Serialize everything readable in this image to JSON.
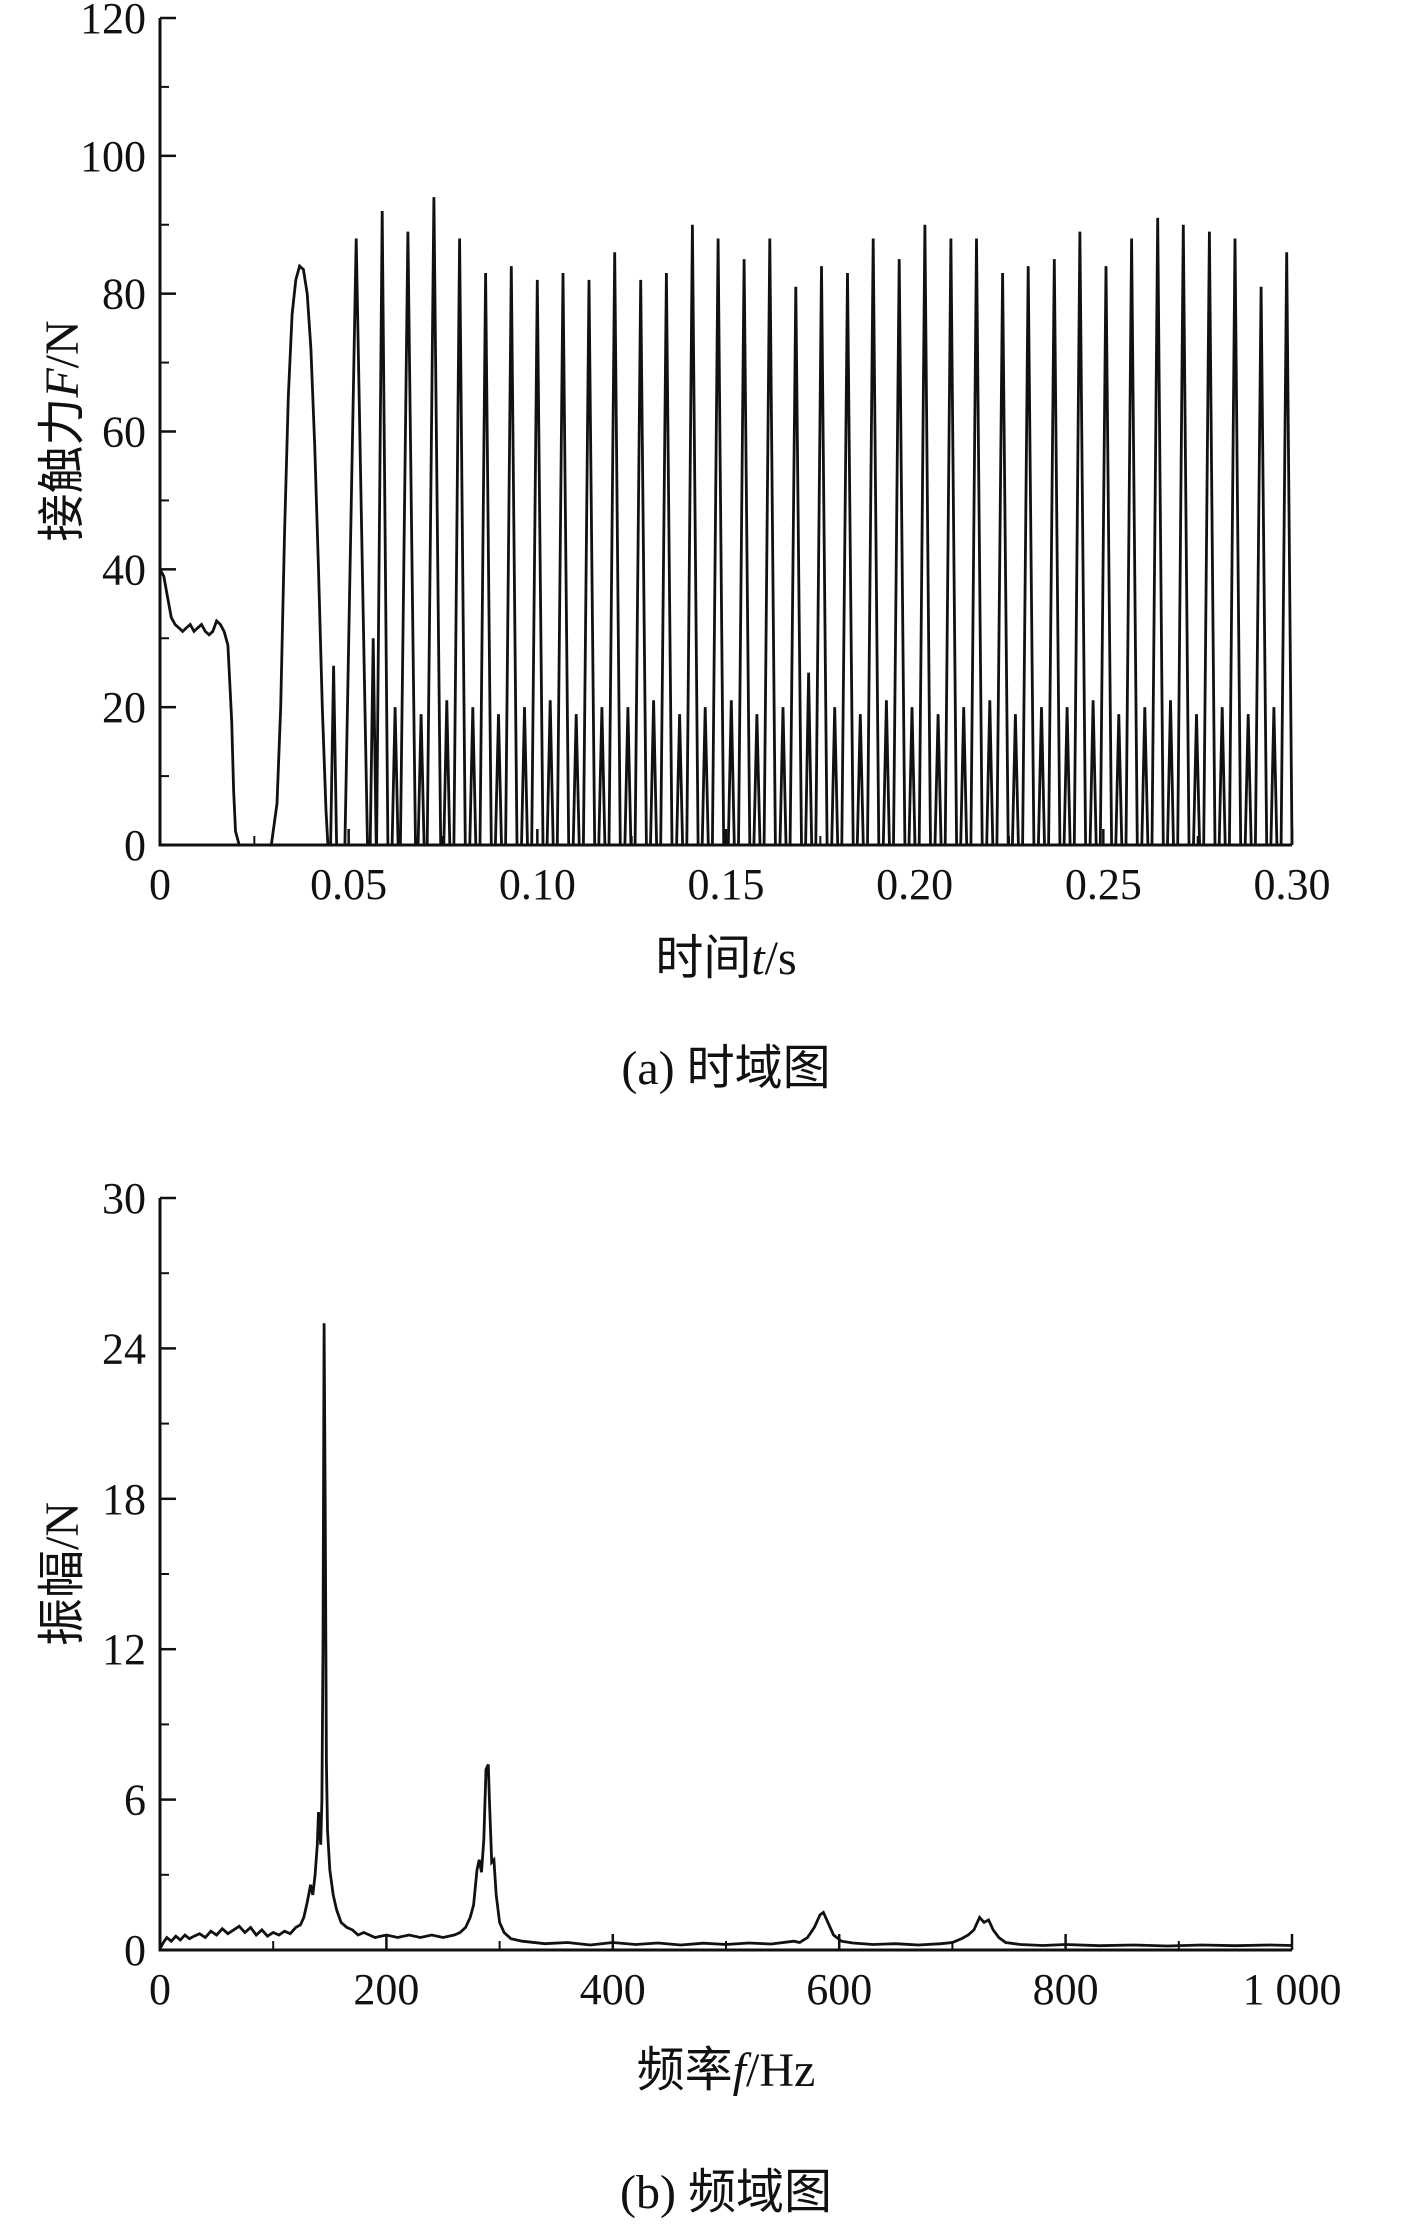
{
  "style": {
    "background": "#ffffff",
    "line_color": "#111111",
    "axis_color": "#111111",
    "tick_label_color": "#111111"
  },
  "chart_data": [
    {
      "type": "line",
      "id": "time-domain",
      "caption": "(a) 时域图",
      "xlabel": {
        "prefix": "时间",
        "var": "t",
        "suffix": "/s"
      },
      "ylabel": {
        "prefix": "接触力",
        "var": "F",
        "suffix": "/N"
      },
      "xlim": [
        0,
        0.3
      ],
      "ylim": [
        0,
        120
      ],
      "xticks": [
        0,
        0.05,
        0.1,
        0.15,
        0.2,
        0.25,
        0.3
      ],
      "xtick_labels": [
        "0",
        "0.05",
        "0.10",
        "0.15",
        "0.20",
        "0.25",
        "0.30"
      ],
      "yticks": [
        0,
        20,
        40,
        60,
        80,
        100,
        120
      ],
      "ytick_labels": [
        "0",
        "20",
        "40",
        "60",
        "80",
        "100",
        "120"
      ],
      "x_minor_step": 0.025,
      "y_minor_step": 10,
      "grid": false,
      "legend": "none",
      "tall_half_width": 0.0015,
      "small_half_width": 0.0008,
      "transient_points": [
        [
          0,
          40
        ],
        [
          0.001,
          39
        ],
        [
          0.002,
          36
        ],
        [
          0.003,
          33
        ],
        [
          0.004,
          32
        ],
        [
          0.005,
          31.5
        ],
        [
          0.006,
          31
        ],
        [
          0.007,
          31.5
        ],
        [
          0.008,
          32
        ],
        [
          0.009,
          31
        ],
        [
          0.01,
          31.5
        ],
        [
          0.011,
          32
        ],
        [
          0.012,
          31
        ],
        [
          0.013,
          30.5
        ],
        [
          0.014,
          31
        ],
        [
          0.015,
          32.5
        ],
        [
          0.016,
          32
        ],
        [
          0.017,
          31
        ],
        [
          0.018,
          29
        ],
        [
          0.019,
          18
        ],
        [
          0.0195,
          8
        ],
        [
          0.02,
          2
        ],
        [
          0.021,
          0
        ],
        [
          0.0295,
          0
        ],
        [
          0.031,
          6
        ],
        [
          0.032,
          20
        ],
        [
          0.033,
          45
        ],
        [
          0.034,
          65
        ],
        [
          0.035,
          77
        ],
        [
          0.036,
          82
        ],
        [
          0.037,
          84
        ],
        [
          0.038,
          83.5
        ],
        [
          0.039,
          80
        ],
        [
          0.04,
          72
        ],
        [
          0.041,
          58
        ],
        [
          0.042,
          40
        ],
        [
          0.043,
          20
        ],
        [
          0.044,
          5
        ],
        [
          0.0445,
          0
        ]
      ],
      "tall_peaks": [
        [
          0.052,
          88,
          0.003
        ],
        [
          0.0589,
          92
        ],
        [
          0.0657,
          89,
          0.002
        ],
        [
          0.0726,
          94,
          0.0018
        ],
        [
          0.0794,
          88
        ],
        [
          0.0863,
          83
        ],
        [
          0.0931,
          84
        ],
        [
          0.1,
          82
        ],
        [
          0.1068,
          83
        ],
        [
          0.1137,
          82
        ],
        [
          0.1205,
          86
        ],
        [
          0.1274,
          82
        ],
        [
          0.1342,
          83
        ],
        [
          0.1411,
          90
        ],
        [
          0.1479,
          88
        ],
        [
          0.1548,
          85
        ],
        [
          0.1616,
          88
        ],
        [
          0.1685,
          81
        ],
        [
          0.1753,
          84
        ],
        [
          0.1822,
          83
        ],
        [
          0.189,
          88
        ],
        [
          0.1959,
          85
        ],
        [
          0.2027,
          90
        ],
        [
          0.2096,
          88
        ],
        [
          0.2164,
          88
        ],
        [
          0.2233,
          83
        ],
        [
          0.2301,
          84
        ],
        [
          0.237,
          85
        ],
        [
          0.2438,
          89
        ],
        [
          0.2507,
          84
        ],
        [
          0.2575,
          88
        ],
        [
          0.2644,
          91
        ],
        [
          0.2712,
          90
        ],
        [
          0.2781,
          89
        ],
        [
          0.2849,
          88
        ],
        [
          0.2918,
          81
        ],
        [
          0.2986,
          86
        ]
      ],
      "small_peaks": [
        [
          0.046,
          26
        ],
        [
          0.0565,
          30
        ],
        [
          0.0623,
          20
        ],
        [
          0.0692,
          19
        ],
        [
          0.076,
          21
        ],
        [
          0.0829,
          20
        ],
        [
          0.0897,
          19
        ],
        [
          0.0966,
          20
        ],
        [
          0.1034,
          21
        ],
        [
          0.1103,
          19
        ],
        [
          0.1171,
          20
        ],
        [
          0.124,
          20
        ],
        [
          0.1308,
          21
        ],
        [
          0.1377,
          19
        ],
        [
          0.1445,
          20
        ],
        [
          0.1514,
          21
        ],
        [
          0.1582,
          19
        ],
        [
          0.1651,
          20
        ],
        [
          0.1719,
          25
        ],
        [
          0.1788,
          20
        ],
        [
          0.1856,
          19
        ],
        [
          0.1925,
          21
        ],
        [
          0.1993,
          20
        ],
        [
          0.2062,
          19
        ],
        [
          0.213,
          20
        ],
        [
          0.2199,
          21
        ],
        [
          0.2267,
          19
        ],
        [
          0.2336,
          20
        ],
        [
          0.2404,
          20
        ],
        [
          0.2473,
          21
        ],
        [
          0.2541,
          19
        ],
        [
          0.261,
          20
        ],
        [
          0.2678,
          21
        ],
        [
          0.2747,
          19
        ],
        [
          0.2815,
          20
        ],
        [
          0.2884,
          19
        ],
        [
          0.2952,
          20
        ]
      ]
    },
    {
      "type": "line",
      "id": "frequency-domain",
      "caption": "(b) 频域图",
      "xlabel": {
        "prefix": "频率",
        "var": "f",
        "suffix": "/Hz"
      },
      "ylabel": {
        "prefix": "振幅",
        "var": "",
        "suffix": "/N"
      },
      "xlim": [
        0,
        1000
      ],
      "ylim": [
        0,
        30
      ],
      "xticks": [
        0,
        200,
        400,
        600,
        800,
        1000
      ],
      "xtick_labels": [
        "0",
        "200",
        "400",
        "600",
        "800",
        "1 000"
      ],
      "yticks": [
        0,
        6,
        12,
        18,
        24,
        30
      ],
      "ytick_labels": [
        "0",
        "6",
        "12",
        "18",
        "24",
        "30"
      ],
      "x_minor_step": 100,
      "y_minor_step": 3,
      "grid": false,
      "legend": "none",
      "main_peaks": [
        {
          "freq_hz": 145,
          "amplitude": 25
        },
        {
          "freq_hz": 290,
          "amplitude": 7.4
        },
        {
          "freq_hz": 586,
          "amplitude": 1.5
        },
        {
          "freq_hz": 728,
          "amplitude": 1.3
        }
      ],
      "points": [
        [
          0,
          0.05
        ],
        [
          3,
          0.3
        ],
        [
          6,
          0.5
        ],
        [
          10,
          0.35
        ],
        [
          14,
          0.55
        ],
        [
          18,
          0.4
        ],
        [
          22,
          0.6
        ],
        [
          26,
          0.45
        ],
        [
          30,
          0.55
        ],
        [
          35,
          0.65
        ],
        [
          40,
          0.5
        ],
        [
          45,
          0.75
        ],
        [
          50,
          0.6
        ],
        [
          55,
          0.85
        ],
        [
          60,
          0.65
        ],
        [
          65,
          0.8
        ],
        [
          70,
          0.95
        ],
        [
          75,
          0.7
        ],
        [
          80,
          0.9
        ],
        [
          85,
          0.6
        ],
        [
          90,
          0.8
        ],
        [
          95,
          0.55
        ],
        [
          100,
          0.7
        ],
        [
          105,
          0.6
        ],
        [
          110,
          0.75
        ],
        [
          115,
          0.65
        ],
        [
          120,
          0.9
        ],
        [
          124,
          1.0
        ],
        [
          127,
          1.3
        ],
        [
          130,
          1.9
        ],
        [
          133,
          2.6
        ],
        [
          135,
          2.2
        ],
        [
          137,
          3.0
        ],
        [
          139,
          4.2
        ],
        [
          140,
          5.5
        ],
        [
          142,
          4.2
        ],
        [
          143,
          6.0
        ],
        [
          144,
          12.0
        ],
        [
          145,
          25.0
        ],
        [
          146,
          17.0
        ],
        [
          147,
          7.5
        ],
        [
          148,
          4.8
        ],
        [
          150,
          3.2
        ],
        [
          153,
          2.2
        ],
        [
          156,
          1.6
        ],
        [
          160,
          1.1
        ],
        [
          165,
          0.9
        ],
        [
          170,
          0.8
        ],
        [
          175,
          0.6
        ],
        [
          180,
          0.7
        ],
        [
          190,
          0.5
        ],
        [
          200,
          0.6
        ],
        [
          210,
          0.5
        ],
        [
          220,
          0.6
        ],
        [
          230,
          0.5
        ],
        [
          240,
          0.6
        ],
        [
          250,
          0.5
        ],
        [
          260,
          0.6
        ],
        [
          265,
          0.7
        ],
        [
          270,
          0.9
        ],
        [
          274,
          1.3
        ],
        [
          277,
          1.8
        ],
        [
          280,
          3.2
        ],
        [
          282,
          3.6
        ],
        [
          284,
          3.1
        ],
        [
          286,
          4.4
        ],
        [
          288,
          7.2
        ],
        [
          290,
          7.4
        ],
        [
          291,
          6.0
        ],
        [
          293,
          3.5
        ],
        [
          295,
          3.6
        ],
        [
          297,
          2.2
        ],
        [
          300,
          1.1
        ],
        [
          304,
          0.7
        ],
        [
          310,
          0.45
        ],
        [
          320,
          0.35
        ],
        [
          340,
          0.25
        ],
        [
          360,
          0.3
        ],
        [
          380,
          0.2
        ],
        [
          400,
          0.3
        ],
        [
          420,
          0.22
        ],
        [
          440,
          0.28
        ],
        [
          460,
          0.2
        ],
        [
          480,
          0.27
        ],
        [
          500,
          0.22
        ],
        [
          520,
          0.28
        ],
        [
          540,
          0.24
        ],
        [
          560,
          0.35
        ],
        [
          565,
          0.3
        ],
        [
          572,
          0.5
        ],
        [
          578,
          0.9
        ],
        [
          583,
          1.4
        ],
        [
          586,
          1.5
        ],
        [
          590,
          1.1
        ],
        [
          595,
          0.6
        ],
        [
          602,
          0.35
        ],
        [
          612,
          0.28
        ],
        [
          630,
          0.22
        ],
        [
          650,
          0.25
        ],
        [
          670,
          0.2
        ],
        [
          690,
          0.25
        ],
        [
          700,
          0.3
        ],
        [
          708,
          0.45
        ],
        [
          714,
          0.6
        ],
        [
          719,
          0.8
        ],
        [
          724,
          1.3
        ],
        [
          728,
          1.1
        ],
        [
          732,
          1.2
        ],
        [
          736,
          0.8
        ],
        [
          741,
          0.5
        ],
        [
          747,
          0.3
        ],
        [
          760,
          0.22
        ],
        [
          780,
          0.18
        ],
        [
          800,
          0.22
        ],
        [
          830,
          0.17
        ],
        [
          860,
          0.2
        ],
        [
          890,
          0.16
        ],
        [
          920,
          0.2
        ],
        [
          950,
          0.17
        ],
        [
          980,
          0.2
        ],
        [
          1000,
          0.18
        ]
      ]
    }
  ]
}
